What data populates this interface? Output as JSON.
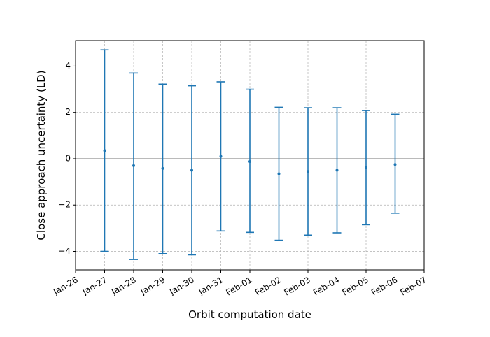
{
  "chart_data": {
    "type": "errorbar",
    "title": "",
    "xlabel": "Orbit computation date",
    "ylabel": "Close approach uncertainty (LD)",
    "x_tick_labels": [
      "Jan-26",
      "Jan-27",
      "Jan-28",
      "Jan-29",
      "Jan-30",
      "Jan-31",
      "Feb-01",
      "Feb-02",
      "Feb-03",
      "Feb-04",
      "Feb-05",
      "Feb-06",
      "Feb-07"
    ],
    "y_tick_labels": [
      "−4",
      "−2",
      "0",
      "2",
      "4"
    ],
    "y_ticks": [
      -4,
      -2,
      0,
      2,
      4
    ],
    "xlim": [
      "Jan-26",
      "Feb-07"
    ],
    "ylim": [
      -4.8,
      5.1
    ],
    "grid": true,
    "reference_line_y": 0,
    "colors": {
      "series": "#1f77b4",
      "grid": "#b0b0b0",
      "zero_line": "#b0b0b0"
    },
    "points": [
      {
        "x": "Jan-27",
        "y": 0.35,
        "y_low": -4.0,
        "y_high": 4.7
      },
      {
        "x": "Jan-28",
        "y": -0.3,
        "y_low": -4.35,
        "y_high": 3.7
      },
      {
        "x": "Jan-29",
        "y": -0.42,
        "y_low": -4.1,
        "y_high": 3.22
      },
      {
        "x": "Jan-30",
        "y": -0.5,
        "y_low": -4.15,
        "y_high": 3.15
      },
      {
        "x": "Jan-31",
        "y": 0.1,
        "y_low": -3.12,
        "y_high": 3.32
      },
      {
        "x": "Feb-01",
        "y": -0.12,
        "y_low": -3.18,
        "y_high": 3.0
      },
      {
        "x": "Feb-02",
        "y": -0.65,
        "y_low": -3.52,
        "y_high": 2.22
      },
      {
        "x": "Feb-03",
        "y": -0.55,
        "y_low": -3.3,
        "y_high": 2.2
      },
      {
        "x": "Feb-04",
        "y": -0.5,
        "y_low": -3.2,
        "y_high": 2.2
      },
      {
        "x": "Feb-05",
        "y": -0.38,
        "y_low": -2.85,
        "y_high": 2.08
      },
      {
        "x": "Feb-06",
        "y": -0.25,
        "y_low": -2.35,
        "y_high": 1.92
      }
    ]
  }
}
